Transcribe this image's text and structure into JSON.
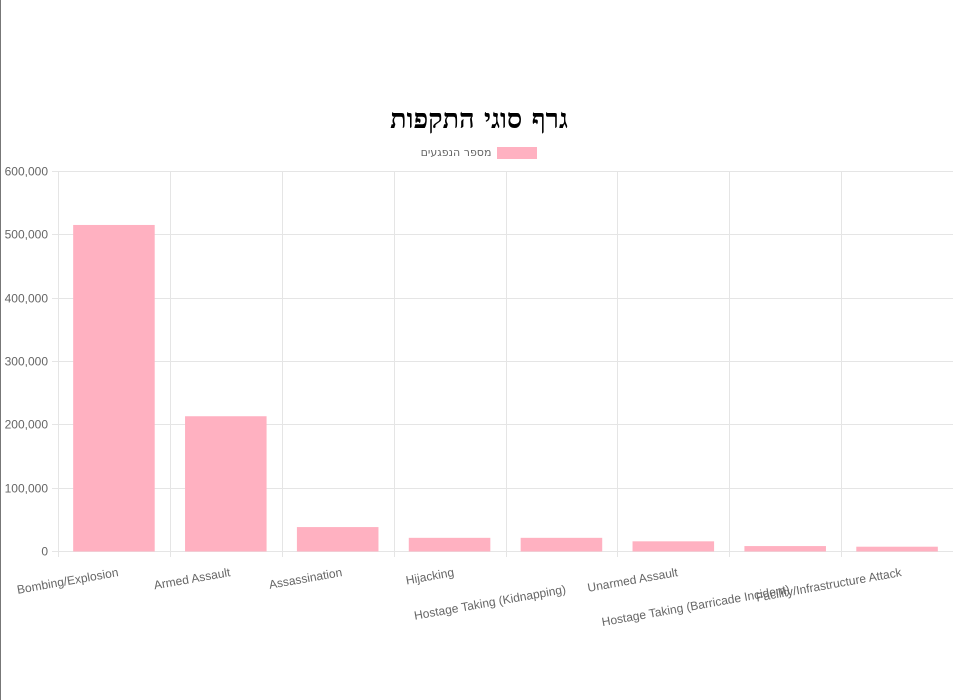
{
  "chart_data": {
    "type": "bar",
    "title": "גרף סוגי התקפות",
    "categories": [
      "Bombing/Explosion",
      "Armed Assault",
      "Assassination",
      "Hijacking",
      "Hostage Taking (Kidnapping)",
      "Unarmed Assault",
      "Hostage Taking (Barricade Incident)",
      "Facility/Infrastructure Attack"
    ],
    "series": [
      {
        "name": "מספר הנפגעים",
        "values": [
          514000,
          212000,
          37000,
          20000,
          20000,
          14500,
          7000,
          6000
        ],
        "color": "#ffb1c1"
      }
    ],
    "ylim": [
      0,
      600000
    ],
    "yticks": [
      "0",
      "100,000",
      "200,000",
      "300,000",
      "400,000",
      "500,000",
      "600,000"
    ],
    "grid": true,
    "legend_position": "top-center"
  }
}
